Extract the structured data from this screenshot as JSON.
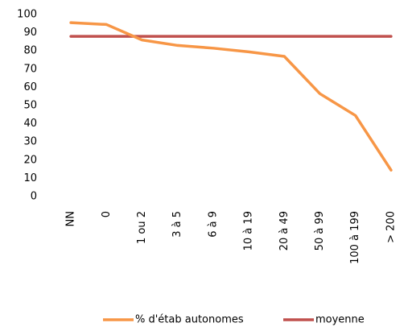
{
  "chart_data": {
    "type": "line",
    "categories": [
      "NN",
      "0",
      "1 ou 2",
      "3 à 5",
      "6 à 9",
      "10 à 19",
      "20 à 49",
      "50 à 99",
      "100 à 199",
      "> 200"
    ],
    "series": [
      {
        "name": "% d'étab autonomes",
        "color": "#f79646",
        "values": [
          95.5,
          94.5,
          86,
          83,
          81.5,
          79.5,
          77,
          56.5,
          44.5,
          14.5
        ]
      },
      {
        "name": "moyenne",
        "color": "#c0504d",
        "values": [
          88,
          88,
          88,
          88,
          88,
          88,
          88,
          88,
          88,
          88
        ]
      }
    ],
    "ylim": [
      0,
      100
    ],
    "yticks": [
      0,
      10,
      20,
      30,
      40,
      50,
      60,
      70,
      80,
      90,
      100
    ],
    "grid": false,
    "legend": "bottom"
  }
}
